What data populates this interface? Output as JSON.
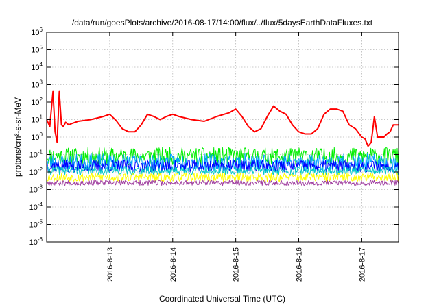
{
  "chart_data": {
    "type": "line",
    "title": "/data/run/goesPlots/archive/2016-08-17/14:00/flux/../flux/5daysEarthDataFluxes.txt",
    "xlabel": "Coordinated Universal Time (UTC)",
    "ylabel": "protons/cm²-s-sr-MeV",
    "yscale": "log",
    "ylim": [
      1e-06,
      1000000.0
    ],
    "xlim": [
      "2016-08-12 00:00",
      "2016-08-17 14:00"
    ],
    "grid": true,
    "y_ticks": [
      {
        "value": 1e-06,
        "base": "10",
        "exp": "-6"
      },
      {
        "value": 1e-05,
        "base": "10",
        "exp": "-5"
      },
      {
        "value": 0.0001,
        "base": "10",
        "exp": "-4"
      },
      {
        "value": 0.001,
        "base": "10",
        "exp": "-3"
      },
      {
        "value": 0.01,
        "base": "10",
        "exp": "-2"
      },
      {
        "value": 0.1,
        "base": "10",
        "exp": "-1"
      },
      {
        "value": 1,
        "base": "10",
        "exp": "0"
      },
      {
        "value": 10,
        "base": "10",
        "exp": "1"
      },
      {
        "value": 100,
        "base": "10",
        "exp": "2"
      },
      {
        "value": 1000,
        "base": "10",
        "exp": "3"
      },
      {
        "value": 10000,
        "base": "10",
        "exp": "4"
      },
      {
        "value": 100000,
        "base": "10",
        "exp": "5"
      },
      {
        "value": 1000000,
        "base": "10",
        "exp": "6"
      }
    ],
    "x_ticks": [
      {
        "value": "2016-08-13",
        "label": "2016-8-13"
      },
      {
        "value": "2016-08-14",
        "label": "2016-8-14"
      },
      {
        "value": "2016-08-15",
        "label": "2016-8-15"
      },
      {
        "value": "2016-08-16",
        "label": "2016-8-16"
      },
      {
        "value": "2016-08-17",
        "label": "2016-8-17"
      }
    ],
    "series": [
      {
        "color": "#ff0000",
        "width": 2,
        "x": [
          "2016-08-12 00:00",
          "2016-08-12 01:12",
          "2016-08-12 02:24",
          "2016-08-12 03:12",
          "2016-08-12 04:00",
          "2016-08-12 04:48",
          "2016-08-12 05:38",
          "2016-08-12 06:24",
          "2016-08-12 07:12",
          "2016-08-12 08:24",
          "2016-08-12 09:36",
          "2016-08-12 12:00",
          "2016-08-12 16:48",
          "2016-08-12 21:36",
          "2016-08-13 00:00",
          "2016-08-13 02:24",
          "2016-08-13 04:48",
          "2016-08-13 07:12",
          "2016-08-13 09:36",
          "2016-08-13 12:00",
          "2016-08-13 14:24",
          "2016-08-13 16:48",
          "2016-08-13 19:12",
          "2016-08-13 21:36",
          "2016-08-14 00:00",
          "2016-08-14 02:24",
          "2016-08-14 07:12",
          "2016-08-14 12:00",
          "2016-08-14 16:48",
          "2016-08-14 21:36",
          "2016-08-15 00:00",
          "2016-08-15 02:24",
          "2016-08-15 04:48",
          "2016-08-15 07:12",
          "2016-08-15 09:36",
          "2016-08-15 12:00",
          "2016-08-15 14:24",
          "2016-08-15 16:48",
          "2016-08-15 19:12",
          "2016-08-15 21:36",
          "2016-08-16 00:00",
          "2016-08-16 02:24",
          "2016-08-16 04:48",
          "2016-08-16 07:12",
          "2016-08-16 09:36",
          "2016-08-16 12:00",
          "2016-08-16 14:24",
          "2016-08-16 16:48",
          "2016-08-16 19:12",
          "2016-08-16 21:36",
          "2016-08-17 00:00",
          "2016-08-17 01:12",
          "2016-08-17 02:24",
          "2016-08-17 03:36",
          "2016-08-17 04:48",
          "2016-08-17 06:00",
          "2016-08-17 07:12",
          "2016-08-17 08:24",
          "2016-08-17 09:36",
          "2016-08-17 10:48",
          "2016-08-17 12:00",
          "2016-08-17 13:12",
          "2016-08-17 14:00"
        ],
        "y": [
          10,
          4,
          400,
          2,
          0.5,
          400,
          5,
          4,
          7,
          5,
          6,
          8,
          10,
          15,
          20,
          9,
          3,
          2,
          2,
          5,
          20,
          15,
          10,
          15,
          20,
          15,
          10,
          8,
          15,
          25,
          40,
          15,
          4,
          2,
          3,
          15,
          60,
          30,
          20,
          5,
          2,
          1.5,
          1.5,
          3,
          20,
          40,
          40,
          30,
          5,
          3,
          1,
          0.8,
          0.3,
          0.5,
          15,
          1,
          1,
          1,
          1.5,
          2,
          5,
          5,
          5
        ]
      },
      {
        "color": "#00ee00",
        "width": 1,
        "base": 0.08,
        "amp": 0.5,
        "seed": 11,
        "x_range": [
          "2016-08-12 00:00",
          "2016-08-17 14:00"
        ]
      },
      {
        "color": "#00a2ff",
        "width": 1,
        "base": 0.035,
        "amp": 0.5,
        "seed": 23,
        "x_range": [
          "2016-08-12 00:00",
          "2016-08-17 14:00"
        ]
      },
      {
        "color": "#0000ff",
        "width": 1,
        "base": 0.022,
        "amp": 0.35,
        "seed": 37,
        "x_range": [
          "2016-08-12 00:00",
          "2016-08-17 14:00"
        ]
      },
      {
        "color": "#00c8c8",
        "width": 1,
        "base": 0.012,
        "amp": 0.25,
        "seed": 41,
        "x_range": [
          "2016-08-12 00:00",
          "2016-08-17 14:00"
        ]
      },
      {
        "color": "#ffff00",
        "width": 1,
        "base": 0.005,
        "amp": 0.25,
        "seed": 53,
        "x_range": [
          "2016-08-12 00:00",
          "2016-08-17 14:00"
        ]
      },
      {
        "color": "#a040a0",
        "width": 1,
        "base": 0.0024,
        "amp": 0.15,
        "seed": 67,
        "x_range": [
          "2016-08-12 00:00",
          "2016-08-17 14:00"
        ]
      }
    ]
  }
}
